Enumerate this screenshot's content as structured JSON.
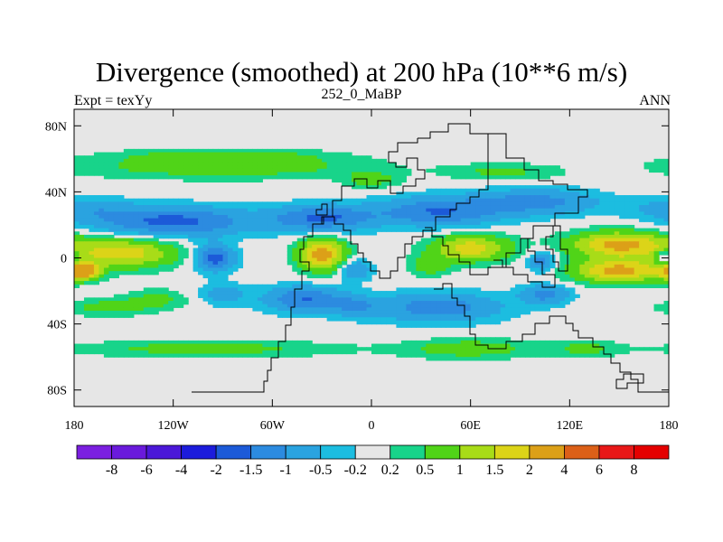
{
  "chart_data": {
    "type": "heatmap",
    "title": "Divergence (smoothed) at 200 hPa (10**6 m/s)",
    "subtitle_left": "Expt = texYy",
    "subtitle_center": "252_0_MaBP",
    "subtitle_right": "ANN",
    "xlim": [
      -180,
      180
    ],
    "ylim": [
      -90,
      90
    ],
    "x_ticks": [
      {
        "value": -180,
        "label": "180"
      },
      {
        "value": -120,
        "label": "120W"
      },
      {
        "value": -60,
        "label": "60W"
      },
      {
        "value": 0,
        "label": "0"
      },
      {
        "value": 60,
        "label": "60E"
      },
      {
        "value": 120,
        "label": "120E"
      },
      {
        "value": 180,
        "label": "180"
      }
    ],
    "y_ticks": [
      {
        "value": 80,
        "label": "80N"
      },
      {
        "value": 40,
        "label": "40N"
      },
      {
        "value": 0,
        "label": "0"
      },
      {
        "value": -40,
        "label": "40S"
      },
      {
        "value": -80,
        "label": "80S"
      }
    ],
    "colorbar_labels": [
      "-8",
      "-6",
      "-4",
      "-2",
      "-1.5",
      "-1",
      "-0.5",
      "-0.2",
      "0.2",
      "0.5",
      "1",
      "1.5",
      "2",
      "4",
      "6",
      "8"
    ],
    "colorbar_colors": [
      "#7b1fe0",
      "#6a1adc",
      "#4b18d8",
      "#1c1cdc",
      "#1c5ad8",
      "#2c8be0",
      "#2aa3e0",
      "#1cbde0",
      "#e6e6e6",
      "#18d48a",
      "#50d418",
      "#a8dc18",
      "#dcd418",
      "#dca018",
      "#dc6018",
      "#e81818",
      "#e40000"
    ],
    "grid": false,
    "legend": "bottom",
    "features": [
      {
        "lon": -90,
        "lat": 55,
        "rx": 90,
        "ry": 7,
        "v": 0.8
      },
      {
        "lon": -120,
        "lat": 22,
        "rx": 48,
        "ry": 9,
        "v": -1.7
      },
      {
        "lon": -30,
        "lat": 24,
        "rx": 30,
        "ry": 8,
        "v": -1.6
      },
      {
        "lon": 40,
        "lat": 28,
        "rx": 38,
        "ry": 9,
        "v": -1.5
      },
      {
        "lon": 100,
        "lat": 34,
        "rx": 38,
        "ry": 8,
        "v": -1.2
      },
      {
        "lon": -175,
        "lat": 30,
        "rx": 30,
        "ry": 7,
        "v": -0.7
      },
      {
        "lon": -90,
        "lat": 62,
        "rx": 60,
        "ry": 4,
        "v": 0.6
      },
      {
        "lon": 0,
        "lat": 47,
        "rx": 16,
        "ry": 5,
        "v": 0.7
      },
      {
        "lon": 80,
        "lat": 52,
        "rx": 34,
        "ry": 5,
        "v": 0.6
      },
      {
        "lon": -150,
        "lat": 3,
        "rx": 32,
        "ry": 9,
        "v": 1.8
      },
      {
        "lon": -95,
        "lat": 0,
        "rx": 12,
        "ry": 8,
        "v": -1.8
      },
      {
        "lon": -30,
        "lat": 2,
        "rx": 14,
        "ry": 10,
        "v": 2.3
      },
      {
        "lon": -10,
        "lat": -7,
        "rx": 10,
        "ry": 6,
        "v": -1.1
      },
      {
        "lon": 60,
        "lat": 6,
        "rx": 24,
        "ry": 8,
        "v": 1.8
      },
      {
        "lon": 35,
        "lat": -5,
        "rx": 12,
        "ry": 6,
        "v": 0.8
      },
      {
        "lon": 103,
        "lat": -2,
        "rx": 8,
        "ry": 6,
        "v": -1.3
      },
      {
        "lon": 150,
        "lat": 8,
        "rx": 30,
        "ry": 8,
        "v": 2.2
      },
      {
        "lon": 150,
        "lat": -8,
        "rx": 28,
        "ry": 7,
        "v": 2.2
      },
      {
        "lon": -175,
        "lat": -8,
        "rx": 10,
        "ry": 5,
        "v": 2.5
      },
      {
        "lon": 177,
        "lat": 0,
        "rx": 5,
        "ry": 5,
        "v": -1.4
      },
      {
        "lon": -130,
        "lat": -25,
        "rx": 20,
        "ry": 6,
        "v": 0.6
      },
      {
        "lon": -90,
        "lat": -22,
        "rx": 15,
        "ry": 7,
        "v": -0.7
      },
      {
        "lon": -40,
        "lat": -25,
        "rx": 25,
        "ry": 8,
        "v": -1.5
      },
      {
        "lon": 40,
        "lat": -30,
        "rx": 40,
        "ry": 9,
        "v": -1.3
      },
      {
        "lon": 105,
        "lat": -22,
        "rx": 15,
        "ry": 6,
        "v": -1.2
      },
      {
        "lon": -160,
        "lat": -30,
        "rx": 25,
        "ry": 5,
        "v": 0.7
      },
      {
        "lon": -100,
        "lat": -55,
        "rx": 80,
        "ry": 5,
        "v": 0.7
      },
      {
        "lon": 60,
        "lat": -55,
        "rx": 40,
        "ry": 6,
        "v": 0.8
      },
      {
        "lon": -10,
        "lat": -30,
        "rx": 12,
        "ry": 6,
        "v": -0.8
      },
      {
        "lon": 130,
        "lat": -55,
        "rx": 20,
        "ry": 5,
        "v": 0.6
      }
    ]
  }
}
